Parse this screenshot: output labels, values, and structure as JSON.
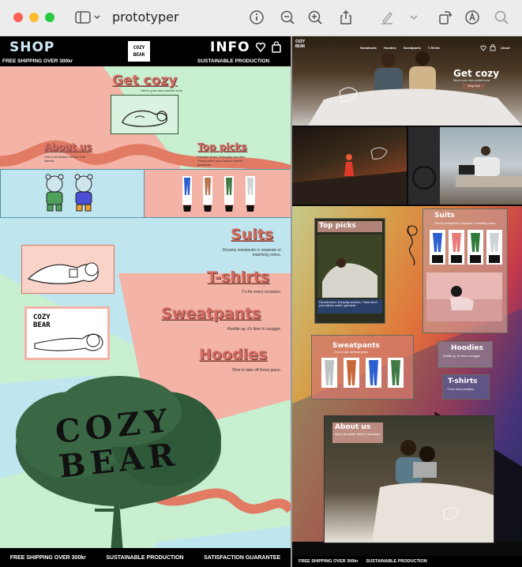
{
  "window": {
    "title": "prototyper"
  },
  "left": {
    "header": {
      "shop": "SHOP",
      "info": "INFO",
      "logo": "COZY BEAR",
      "free_shipping": "FREE SHIPPING OVER 300kr",
      "sustainable": "SUSTAINABLE PRODUCTION"
    },
    "hero": {
      "title": "Get cozy",
      "subtitle": "Here's your new comfort zone"
    },
    "about": {
      "title": "About us",
      "text": "How it all started. Where it all started."
    },
    "top": {
      "title": "Top picks",
      "text": "Favorite items. Everyday wonders. These aren't your fashion weeks' garments."
    },
    "categories": [
      {
        "title": "Suits",
        "text": "Dreamy sweatsuits in separate or matching colors."
      },
      {
        "title": "T-shirts",
        "text": "T's for every occasion."
      },
      {
        "title": "Sweatpants",
        "text": "Huddle up, it's time to snuggle."
      },
      {
        "title": "Hoodies",
        "text": "Time to take off those jeans."
      }
    ],
    "tree_text": "COZY BEAR",
    "badge": "COZY BEAR",
    "footer": [
      "FREE SHIPPING OVER 300kr",
      "SUSTAINABLE PRODUCTION",
      "SATISFACTION GUARANTEE"
    ]
  },
  "right": {
    "logo": "COZY BEAR",
    "nav": [
      "Sweatsuits",
      "Hoodies",
      "Sweatpants",
      "T-Shirts"
    ],
    "about_link": "About",
    "hero": {
      "title": "Get cozy",
      "subtitle": "Here's your new comfort zone",
      "button": "Shop now"
    },
    "top": {
      "title": "Top picks",
      "caption": "Favorite items. Everyday wonders. These aren't your fashion weeks' garments."
    },
    "suits": {
      "title": "Suits",
      "text": "Dreamy sweatsuits in separate or matching colors."
    },
    "sweatpants": {
      "title": "Sweatpants",
      "text": "Time to take off those jeans."
    },
    "hoodies": {
      "title": "Hoodies",
      "text": "Huddle up, it's time to snuggle."
    },
    "tshirts": {
      "title": "T-shirts",
      "text": "T's for every occasion."
    },
    "about": {
      "title": "About us",
      "text": "How it all started. Where it all started."
    },
    "footer": [
      "FREE SHIPPING OVER 300kr",
      "SUSTAINABLE PRODUCTION"
    ]
  },
  "colors": {
    "salmon": "#f3b3a6",
    "mint": "#c7efd0",
    "sky": "#bfe6ef",
    "coral": "#e27b64",
    "green": "#2f5a3a"
  }
}
